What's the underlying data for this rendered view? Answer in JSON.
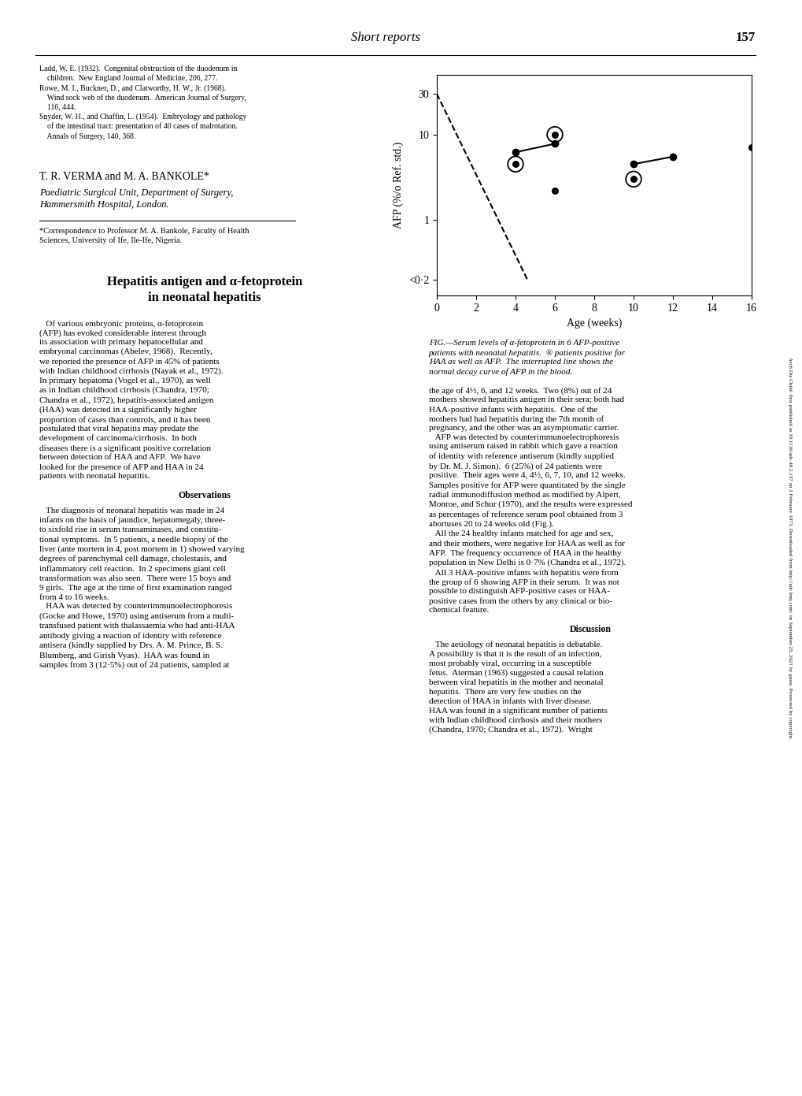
{
  "chart_data": {
    "type": "line",
    "xlabel": "Age (weeks)",
    "ylabel": "AFP (%/o Ref. std.)",
    "log": "y",
    "xlim": [
      0,
      16
    ],
    "ylim": [
      0.13,
      50
    ],
    "xticks": [
      0,
      2,
      4,
      6,
      8,
      10,
      12,
      14,
      16
    ],
    "yticks": [
      {
        "value": 0.2,
        "label": "<0·2"
      },
      1,
      10,
      30
    ],
    "color": "#000000",
    "series": [
      {
        "type": "line",
        "line_style": "dashed",
        "x": [
          0,
          4.6
        ],
        "values": [
          30,
          0.2
        ]
      },
      {
        "type": "line",
        "line_style": "solid",
        "marker": "o",
        "x": [
          4.0,
          6.0
        ],
        "values": [
          6.2,
          7.8
        ]
      },
      {
        "type": "line",
        "line_style": "solid",
        "marker": "o",
        "x": [
          10.0,
          12.0
        ],
        "values": [
          4.5,
          5.5
        ]
      },
      {
        "type": "scatter",
        "marker": "o",
        "x": [
          6.0,
          16.0
        ],
        "values": [
          2.2,
          7.0
        ]
      },
      {
        "type": "scatter",
        "marker": "circled",
        "x": [
          4.0,
          6.0,
          10.0
        ],
        "values": [
          4.5,
          10.0,
          3.0
        ]
      }
    ],
    "annotations": [
      "Short reports",
      "157",
      "Ladd, W. E. (1932).  Congenital obstruction of the duodenum in\n    children.  New England Journal of Medicine, 206, 277.\nRowe, M. I., Buckner, D., and Clatworthy, H. W., Jr. (1968).\n    Wind sock web of the duodenum.  American Journal of Surgery,\n    116, 444.\nSnyder, W. H., and Chaffin, L. (1954).  Embryology and pathology\n    of the intestinal tract: presentation of 40 cases of malrotation.\n    Annals of Surgery, 140, 368.",
      "T. R. VERMA and M. A. BANKOLE*",
      "Paediatric Surgical Unit, Department of Surgery,",
      "Hammersmith Hospital, London.",
      "*Correspondence to Professor M. A. Bankole, Faculty of Health\nSciences, University of Ife, Ile-Ife, Nigeria.",
      "FIG.—Serum levels of α-fetoprotein in 6 AFP-positive\npatients with neonatal hepatitis.  ® patients positive for\nHAA as well as AFP.  The interrupted line shows the\nnormal decay curve of AFP in the blood.",
      "Hepatitis antigen and α-fetoprotein",
      "in neonatal hepatitis",
      "   Of various embryonic proteins, α-fetoprotein\n(AFP) has evoked considerable interest through\nits association with primary hepatocellular and\nembryonal carcinomas (Abelev, 1968).  Recently,\nwe reported the presence of AFP in 45% of patients\nwith Indian childhood cirrhosis (Nayak et al., 1972).\nIn primary hepatoma (Vogel et al., 1970), as well\nas in Indian childhood cirrhosis (Chandra, 1970;\nChandra et al., 1972), hepatitis-associated antigen\n(HAA) was detected in a significantly higher\nproportion of cases than controls, and it has been\npostulated that viral hepatitis may predate the\ndevelopment of carcinoma/cirrhosis.  In both\ndiseases there is a significant positive correlation\nbetween detection of HAA and AFP.  We have\nlooked for the presence of AFP and HAA in 24\npatients with neonatal hepatitis.",
      "Observations",
      "   The diagnosis of neonatal hepatitis was made in 24\ninfants on the basis of jaundice, hepatomegaly, three-\nto sixfold rise in serum transaminases, and constitu-\ntional symptoms.  In 5 patients, a needle biopsy of the\nliver (ante mortem in 4, post mortem in 1) showed varying\ndegrees of parenchymal cell damage, cholestasis, and\ninflammatory cell reaction.  In 2 specimens giant cell\ntransformation was also seen.  There were 15 boys and\n9 girls.  The age at the time of first examination ranged\nfrom 4 to 16 weeks.\n   HAA was detected by counterimmunoelectrophoresis\n(Gocke and Howe, 1970) using antiserum from a multi-\ntransfused patient with thalassaemia who had anti-HAA\nantibody giving a reaction of identity with reference\nantisera (kindly supplied by Drs. A. M. Prince, B. S.\nBlumberg, and Girish Vyas).  HAA was found in\nsamples from 3 (12·5%) out of 24 patients, sampled at",
      "the age of 4½, 6, and 12 weeks.  Two (8%) out of 24\nmothers showed hepatitis antigen in their sera; both had\nHAA-positive infants with hepatitis.  One of the\nmothers had had hepatitis during the 7th month of\npregnancy, and the other was an asymptomatic carrier.\n   AFP was detected by counterimmunoelectrophoresis\nusing antiserum raised in rabbit which gave a reaction\nof identity with reference antiserum (kindly supplied\nby Dr. M. J. Simon).  6 (25%) of 24 patients were\npositive.  Their ages were 4, 4½, 6, 7, 10, and 12 weeks.\nSamples positive for AFP were quantitated by the single\nradial immunodiffusion method as modified by Alpert,\nMonroe, and Schur (1970), and the results were expressed\nas percentages of reference serum pool obtained from 3\nabortuses 20 to 24 weeks old (Fig.).\n   All the 24 healthy infants matched for age and sex,\nand their mothers, were negative for HAA as well as for\nAFP.  The frequency occurrence of HAA in the healthy\npopulation in New Delhi is 0·7% (Chandra et al., 1972).\n   All 3 HAA-positive infants with hepatitis were from\nthe group of 6 showing AFP in their serum.  It was not\npossible to distinguish AFP-positive cases or HAA-\npositive cases from the others by any clinical or bio-\nchemical feature.",
      "Discussion",
      "   The aetiology of neonatal hepatitis is debatable.\nA possibility is that it is the result of an infection,\nmost probably viral, occurring in a susceptible\nfetus.  Aterman (1963) suggested a causal relation\nbetween viral hepatitis in the mother and neonatal\nhepatitis.  There are very few studies on the\ndetection of HAA in infants with liver disease.\nHAA was found in a significant number of patients\nwith Indian childhood cirrhosis and their mothers\n(Chandra, 1970; Chandra et al., 1972).  Wright",
      "Arch Dis Child: first published as 10.1136/adc.48.2.157 on 1 February 1973. Downloaded from http://adc.bmj.com/ on September 25, 2021 by guest. Protected by copyright."
    ]
  }
}
